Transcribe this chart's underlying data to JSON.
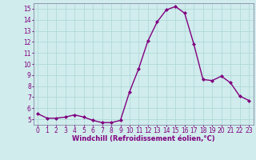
{
  "x": [
    0,
    1,
    2,
    3,
    4,
    5,
    6,
    7,
    8,
    9,
    10,
    11,
    12,
    13,
    14,
    15,
    16,
    17,
    18,
    19,
    20,
    21,
    22,
    23
  ],
  "y": [
    5.5,
    5.1,
    5.1,
    5.2,
    5.4,
    5.2,
    4.9,
    4.7,
    4.7,
    4.9,
    7.5,
    9.6,
    12.1,
    13.8,
    14.9,
    15.2,
    14.6,
    11.8,
    8.6,
    8.5,
    8.9,
    8.3,
    7.1,
    6.7
  ],
  "line_color": "#800080",
  "marker": "D",
  "marker_size": 2.0,
  "linewidth": 1.0,
  "xlabel": "Windchill (Refroidissement éolien,°C)",
  "xlabel_fontsize": 6.0,
  "ylim": [
    4.5,
    15.5
  ],
  "xlim": [
    -0.5,
    23.5
  ],
  "yticks": [
    5,
    6,
    7,
    8,
    9,
    10,
    11,
    12,
    13,
    14,
    15
  ],
  "xticks": [
    0,
    1,
    2,
    3,
    4,
    5,
    6,
    7,
    8,
    9,
    10,
    11,
    12,
    13,
    14,
    15,
    16,
    17,
    18,
    19,
    20,
    21,
    22,
    23
  ],
  "grid_color": "#b0dada",
  "bg_color": "#d0ecec",
  "tick_fontsize": 5.5,
  "fig_bg": "#d0ecec",
  "spine_color": "#8888aa"
}
